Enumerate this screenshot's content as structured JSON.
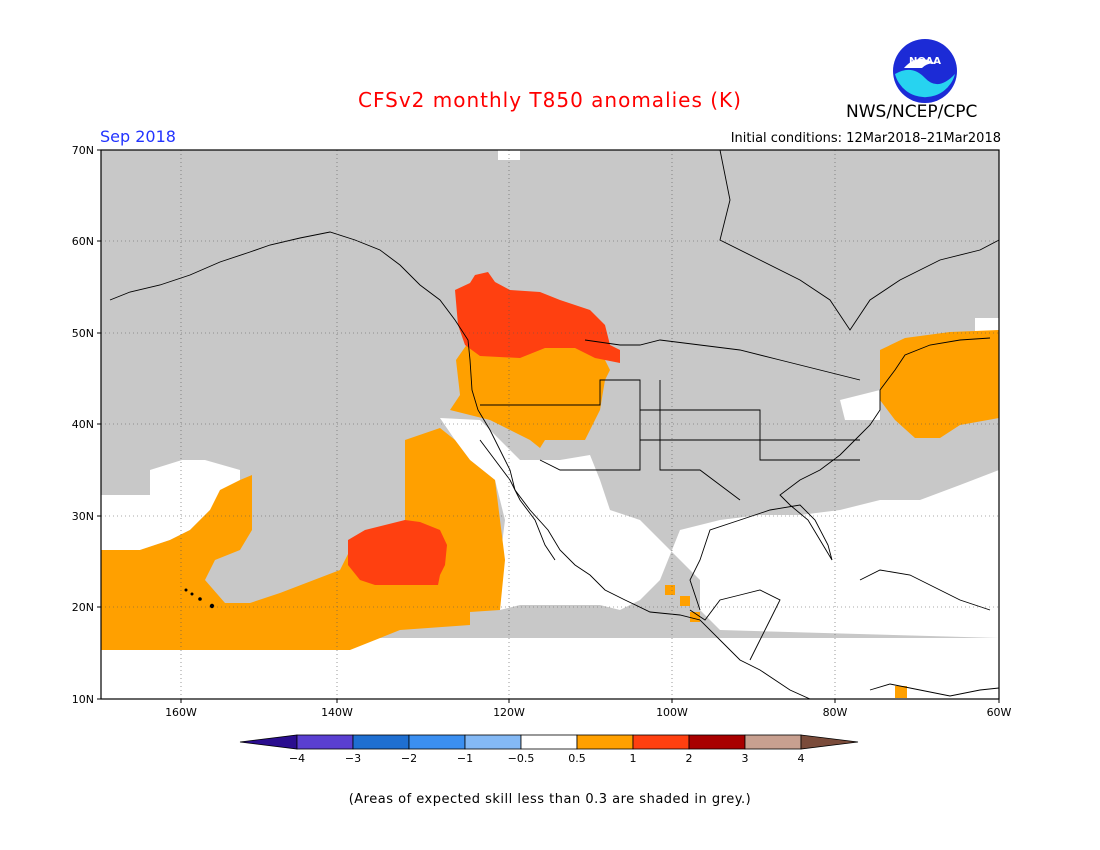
{
  "header": {
    "title": "CFSv2 monthly T850 anomalies (K)",
    "org": "NWS/NCEP/CPC",
    "valid_month": "Sep 2018",
    "initial_conditions": "Initial conditions: 12Mar2018–21Mar2018",
    "logo_text": "NOAA"
  },
  "map": {
    "lat_ticks": [
      "70N",
      "60N",
      "50N",
      "40N",
      "30N",
      "20N",
      "10N"
    ],
    "lon_ticks": [
      "160W",
      "140W",
      "120W",
      "100W",
      "80W",
      "60W"
    ]
  },
  "colorbar": {
    "labels": [
      "−4",
      "−3",
      "−2",
      "−1",
      "−0.5",
      "0.5",
      "1",
      "2",
      "3",
      "4"
    ],
    "colors": [
      "#2a0d8f",
      "#5a3fd1",
      "#1f6fd1",
      "#3b8ff0",
      "#84b9f5",
      "#ffffff",
      "#ffa000",
      "#ff4010",
      "#a80000",
      "#c8a090",
      "#7a4b3a"
    ]
  },
  "legend": {
    "grey": "#c8c8c8",
    "orange": "#ffa000",
    "red": "#ff4010"
  },
  "footnote": "(Areas of expected skill less than 0.3 are shaded in grey.)"
}
